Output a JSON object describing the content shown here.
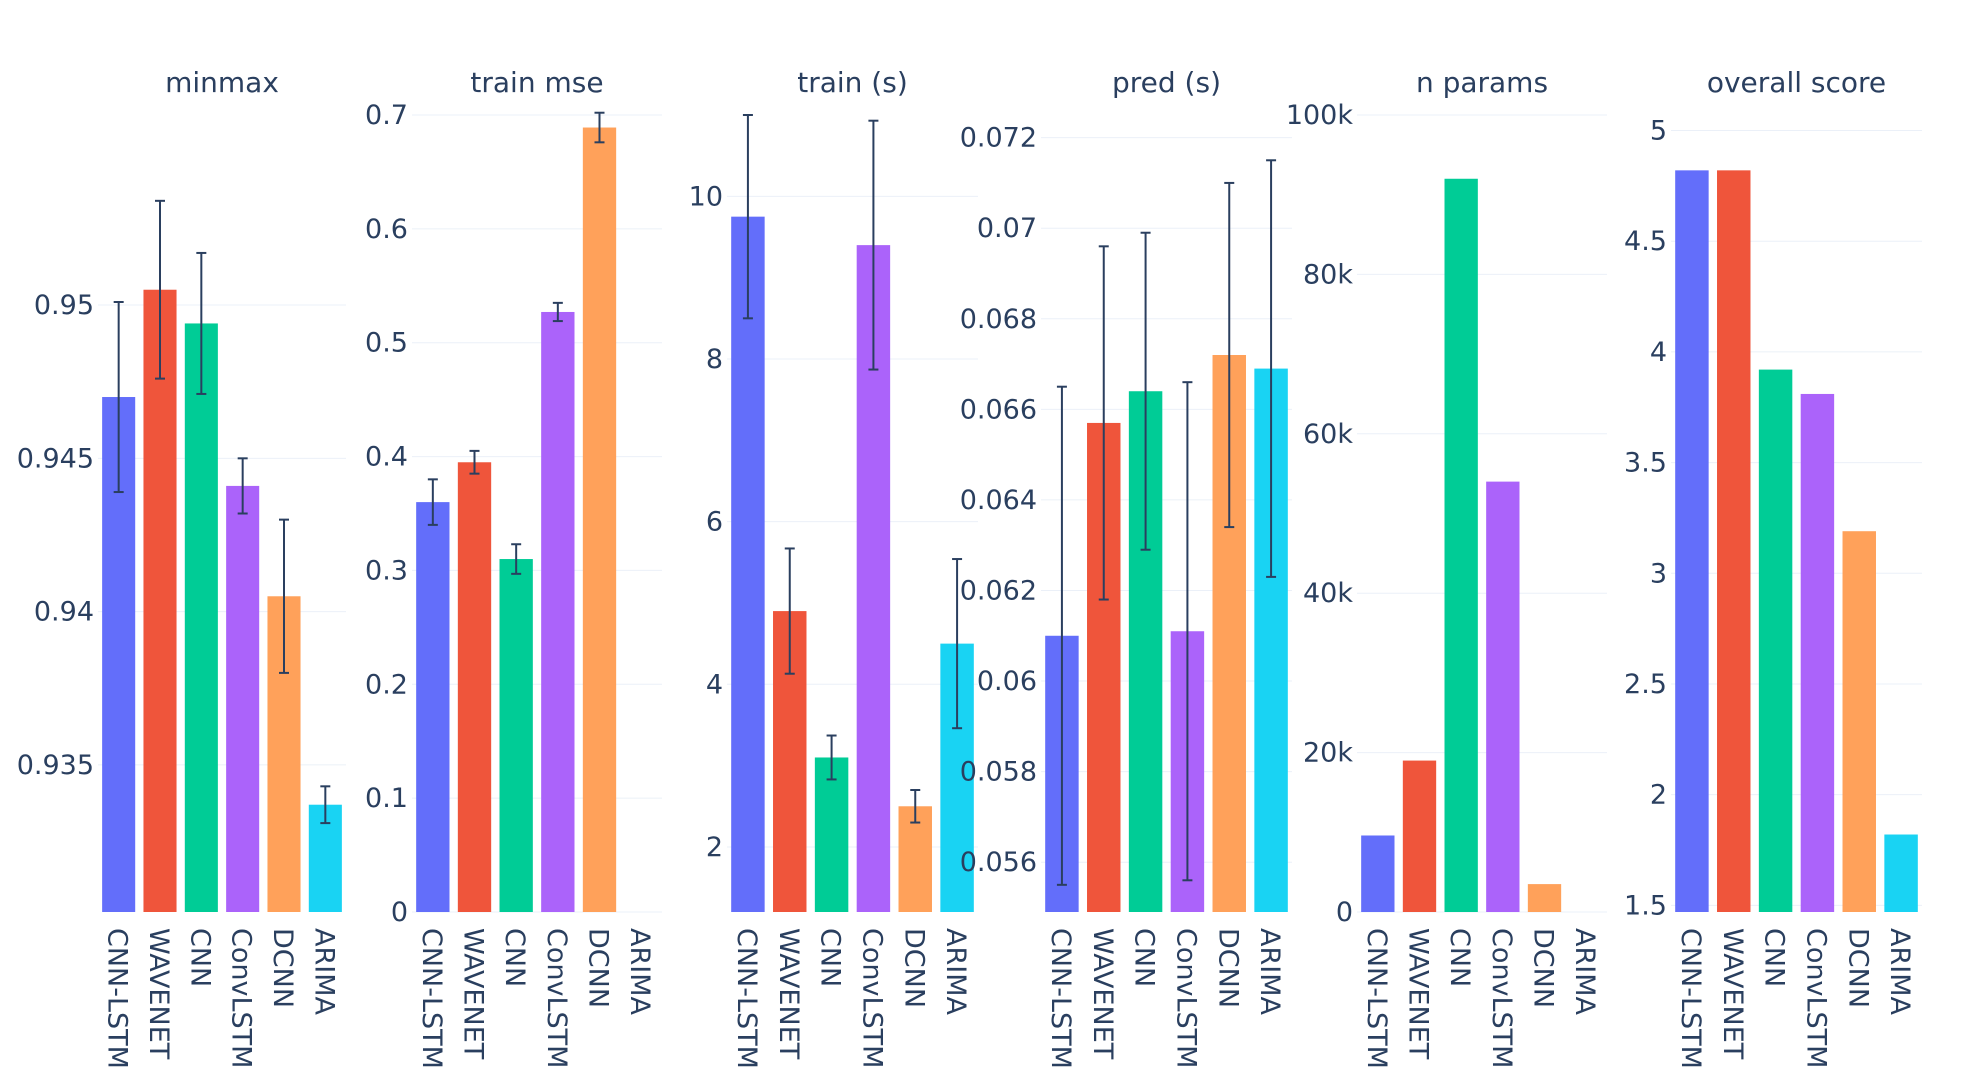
{
  "chart_data": [
    {
      "type": "bar",
      "title": "minmax",
      "categories": [
        "CNN-LSTM",
        "WAVENET",
        "CNN",
        "ConvLSTM",
        "DCNN",
        "ARIMA"
      ],
      "values": [
        0.947,
        0.9505,
        0.9494,
        0.9441,
        0.9405,
        0.9337
      ],
      "errors": [
        0.0031,
        0.0029,
        0.0023,
        0.0009,
        0.0025,
        0.0006
      ],
      "ylim": [
        0.9302,
        0.9562
      ],
      "yticks": [
        0.935,
        0.94,
        0.945,
        0.95
      ],
      "ytick_labels": [
        "0.935",
        "0.94",
        "0.945",
        "0.95"
      ],
      "colors": [
        "#636efa",
        "#ef553b",
        "#00cc96",
        "#ab63fa",
        "#ffa15a",
        "#19d3f3"
      ]
    },
    {
      "type": "bar",
      "title": "train mse",
      "categories": [
        "CNN-LSTM",
        "WAVENET",
        "CNN",
        "ConvLSTM",
        "DCNN",
        "ARIMA"
      ],
      "values": [
        0.36,
        0.395,
        0.31,
        0.527,
        0.689,
        0.0
      ],
      "errors": [
        0.02,
        0.01,
        0.013,
        0.008,
        0.013,
        0.0
      ],
      "ylim": [
        0,
        0.7
      ],
      "yticks": [
        0,
        0.1,
        0.2,
        0.3,
        0.4,
        0.5,
        0.6,
        0.7
      ],
      "ytick_labels": [
        "0",
        "0.1",
        "0.2",
        "0.3",
        "0.4",
        "0.5",
        "0.6",
        "0.7"
      ],
      "colors": [
        "#636efa",
        "#ef553b",
        "#00cc96",
        "#ab63fa",
        "#ffa15a",
        "#19d3f3"
      ]
    },
    {
      "type": "bar",
      "title": "train (s)",
      "categories": [
        "CNN-LSTM",
        "WAVENET",
        "CNN",
        "ConvLSTM",
        "DCNN",
        "ARIMA"
      ],
      "values": [
        9.75,
        4.9,
        3.1,
        9.4,
        2.5,
        4.5
      ],
      "errors": [
        1.25,
        0.77,
        0.27,
        1.53,
        0.2,
        1.04
      ],
      "ylim": [
        1.2,
        11
      ],
      "yticks": [
        2,
        4,
        6,
        8,
        10
      ],
      "ytick_labels": [
        "2",
        "4",
        "6",
        "8",
        "10"
      ],
      "colors": [
        "#636efa",
        "#ef553b",
        "#00cc96",
        "#ab63fa",
        "#ffa15a",
        "#19d3f3"
      ]
    },
    {
      "type": "bar",
      "title": "pred (s)",
      "categories": [
        "CNN-LSTM",
        "WAVENET",
        "CNN",
        "ConvLSTM",
        "DCNN",
        "ARIMA"
      ],
      "values": [
        0.061,
        0.0657,
        0.0664,
        0.0611,
        0.0672,
        0.0669
      ],
      "errors": [
        0.0055,
        0.0039,
        0.0035,
        0.0055,
        0.0038,
        0.0046
      ],
      "ylim": [
        0.0549,
        0.0725
      ],
      "yticks": [
        0.056,
        0.058,
        0.06,
        0.062,
        0.064,
        0.066,
        0.068,
        0.07,
        0.072
      ],
      "ytick_labels": [
        "0.056",
        "0.058",
        "0.06",
        "0.062",
        "0.064",
        "0.066",
        "0.068",
        "0.07",
        "0.072"
      ],
      "colors": [
        "#636efa",
        "#ef553b",
        "#00cc96",
        "#ab63fa",
        "#ffa15a",
        "#19d3f3"
      ]
    },
    {
      "type": "bar",
      "title": "n params",
      "categories": [
        "CNN-LSTM",
        "WAVENET",
        "CNN",
        "ConvLSTM",
        "DCNN",
        "ARIMA"
      ],
      "values": [
        9600,
        19000,
        92000,
        54000,
        3500,
        0
      ],
      "errors": [
        0,
        0,
        0,
        0,
        0,
        0
      ],
      "ylim": [
        0,
        100000
      ],
      "yticks": [
        0,
        20000,
        40000,
        60000,
        80000,
        100000
      ],
      "ytick_labels": [
        "0",
        "20k",
        "40k",
        "60k",
        "80k",
        "100k"
      ],
      "colors": [
        "#636efa",
        "#ef553b",
        "#00cc96",
        "#ab63fa",
        "#ffa15a",
        "#19d3f3"
      ]
    },
    {
      "type": "bar",
      "title": "overall score",
      "categories": [
        "CNN-LSTM",
        "WAVENET",
        "CNN",
        "ConvLSTM",
        "DCNN",
        "ARIMA"
      ],
      "values": [
        4.82,
        4.82,
        3.92,
        3.81,
        3.19,
        1.82
      ],
      "errors": [
        0,
        0,
        0,
        0,
        0,
        0
      ],
      "ylim": [
        1.47,
        5.07
      ],
      "yticks": [
        1.5,
        2,
        2.5,
        3,
        3.5,
        4,
        4.5,
        5
      ],
      "ytick_labels": [
        "1.5",
        "2",
        "2.5",
        "3",
        "3.5",
        "4",
        "4.5",
        "5"
      ],
      "colors": [
        "#636efa",
        "#ef553b",
        "#00cc96",
        "#ab63fa",
        "#ffa15a",
        "#19d3f3"
      ]
    }
  ]
}
